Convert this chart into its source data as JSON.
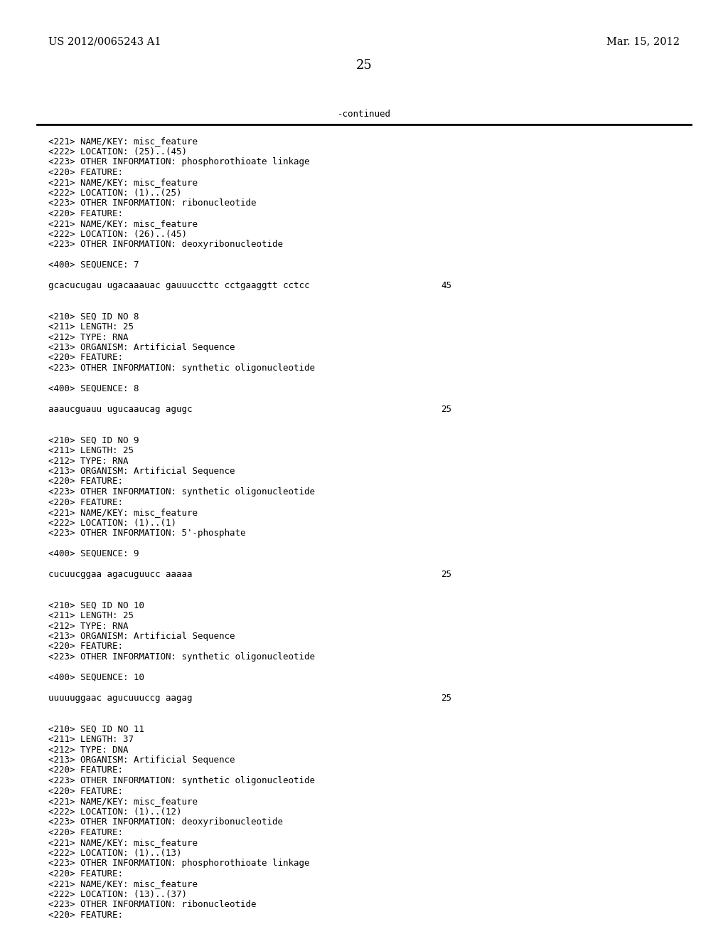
{
  "bg_color": "#ffffff",
  "header_left": "US 2012/0065243 A1",
  "header_right": "Mar. 15, 2012",
  "page_number": "25",
  "continued_label": "-continued",
  "lines": [
    "<221> NAME/KEY: misc_feature",
    "<222> LOCATION: (25)..(45)",
    "<223> OTHER INFORMATION: phosphorothioate linkage",
    "<220> FEATURE:",
    "<221> NAME/KEY: misc_feature",
    "<222> LOCATION: (1)..(25)",
    "<223> OTHER INFORMATION: ribonucleotide",
    "<220> FEATURE:",
    "<221> NAME/KEY: misc_feature",
    "<222> LOCATION: (26)..(45)",
    "<223> OTHER INFORMATION: deoxyribonucleotide",
    "",
    "<400> SEQUENCE: 7",
    "",
    "gcacucugau ugacaaauac gauuuccttc cctgaaggtt cctcc",
    "45_seq",
    "",
    "<210> SEQ ID NO 8",
    "<211> LENGTH: 25",
    "<212> TYPE: RNA",
    "<213> ORGANISM: Artificial Sequence",
    "<220> FEATURE:",
    "<223> OTHER INFORMATION: synthetic oligonucleotide",
    "",
    "<400> SEQUENCE: 8",
    "",
    "aaaucguauu ugucaaucag agugc",
    "25_seq",
    "",
    "<210> SEQ ID NO 9",
    "<211> LENGTH: 25",
    "<212> TYPE: RNA",
    "<213> ORGANISM: Artificial Sequence",
    "<220> FEATURE:",
    "<223> OTHER INFORMATION: synthetic oligonucleotide",
    "<220> FEATURE:",
    "<221> NAME/KEY: misc_feature",
    "<222> LOCATION: (1)..(1)",
    "<223> OTHER INFORMATION: 5'-phosphate",
    "",
    "<400> SEQUENCE: 9",
    "",
    "cucuucggaa agacuguucc aaaaa",
    "25_seq",
    "",
    "<210> SEQ ID NO 10",
    "<211> LENGTH: 25",
    "<212> TYPE: RNA",
    "<213> ORGANISM: Artificial Sequence",
    "<220> FEATURE:",
    "<223> OTHER INFORMATION: synthetic oligonucleotide",
    "",
    "<400> SEQUENCE: 10",
    "",
    "uuuuuggaac agucuuuccg aagag",
    "25_seq",
    "",
    "<210> SEQ ID NO 11",
    "<211> LENGTH: 37",
    "<212> TYPE: DNA",
    "<213> ORGANISM: Artificial Sequence",
    "<220> FEATURE:",
    "<223> OTHER INFORMATION: synthetic oligonucleotide",
    "<220> FEATURE:",
    "<221> NAME/KEY: misc_feature",
    "<222> LOCATION: (1)..(12)",
    "<223> OTHER INFORMATION: deoxyribonucleotide",
    "<220> FEATURE:",
    "<221> NAME/KEY: misc_feature",
    "<222> LOCATION: (1)..(13)",
    "<223> OTHER INFORMATION: phosphorothioate linkage",
    "<220> FEATURE:",
    "<221> NAME/KEY: misc_feature",
    "<222> LOCATION: (13)..(37)",
    "<223> OTHER INFORMATION: ribonucleotide",
    "<220> FEATURE:"
  ],
  "seq_numbers": {
    "14": "45",
    "27": "25",
    "43": "25",
    "54": "25"
  },
  "font_size": 9.0,
  "header_font_size": 10.5,
  "page_num_font_size": 13
}
